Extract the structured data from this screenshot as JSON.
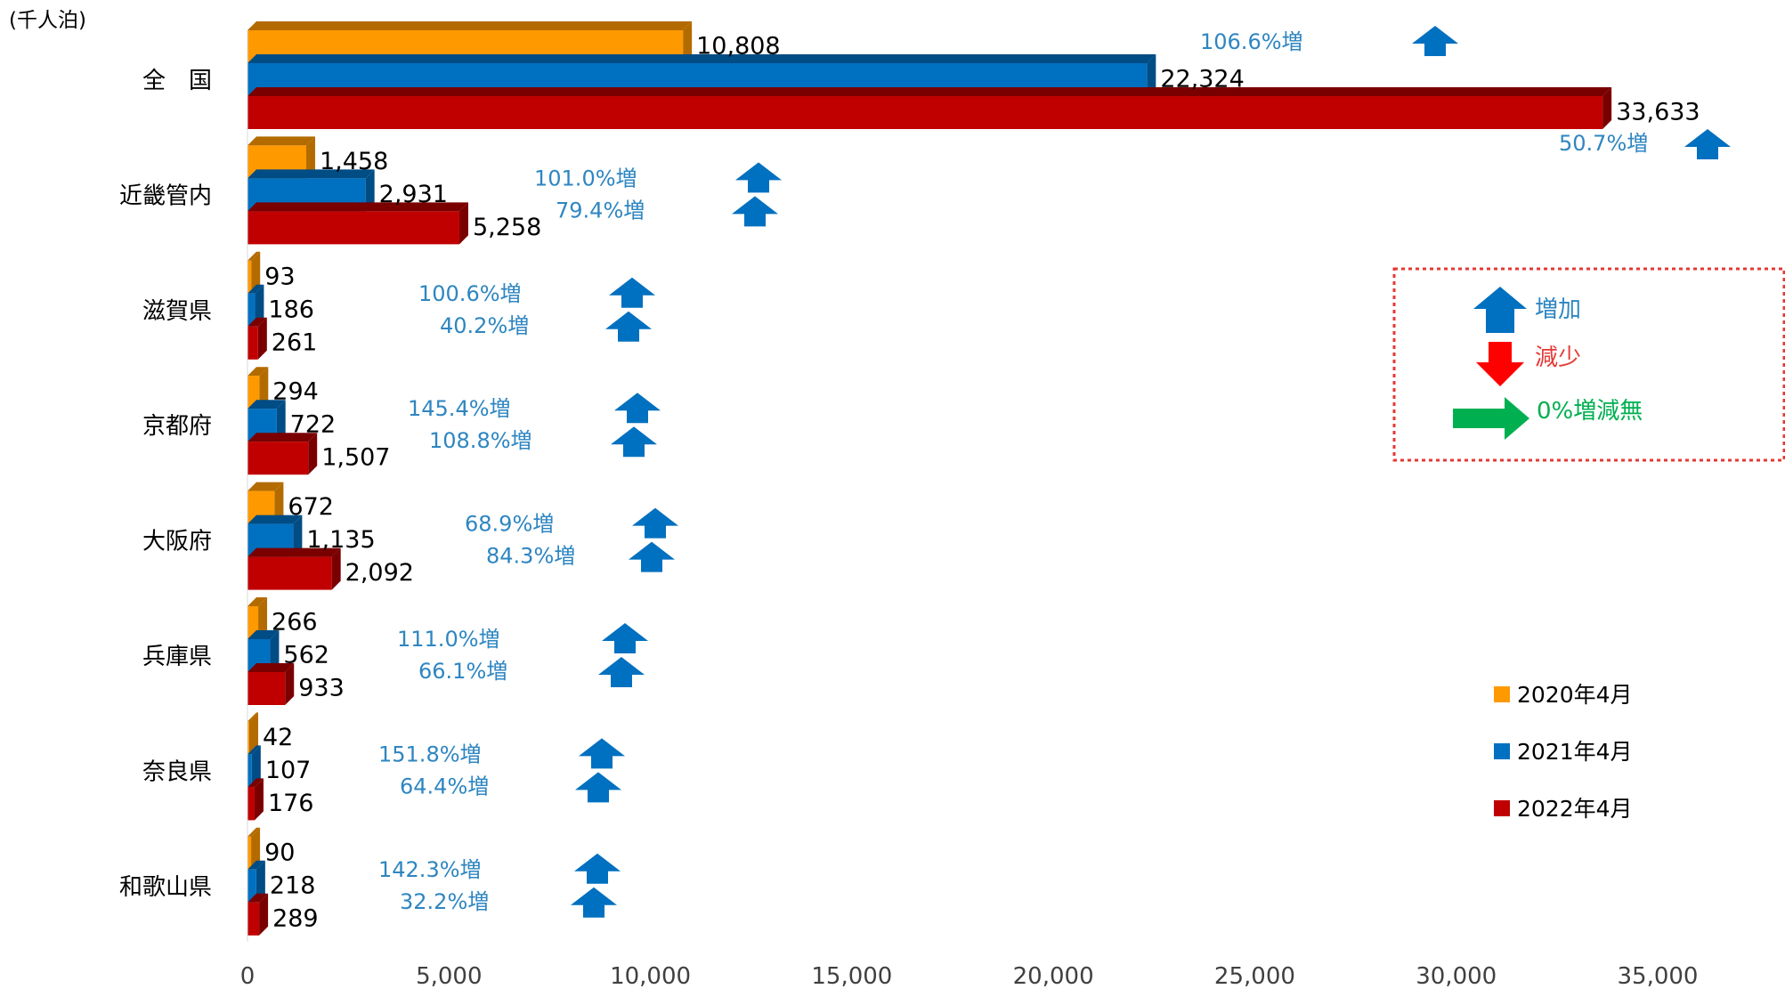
{
  "chart_data": {
    "type": "bar",
    "orientation": "horizontal",
    "unit_label": "(千人泊)",
    "categories": [
      "全　国",
      "近畿管内",
      "滋賀県",
      "京都府",
      "大阪府",
      "兵庫県",
      "奈良県",
      "和歌山県"
    ],
    "series": [
      {
        "name": "2020年4月",
        "color": "#FF9900",
        "values": [
          10808,
          1458,
          93,
          294,
          672,
          266,
          42,
          90
        ],
        "labels": [
          "10,808",
          "1,458",
          "93",
          "294",
          "672",
          "266",
          "42",
          "90"
        ]
      },
      {
        "name": "2021年4月",
        "color": "#0070C0",
        "values": [
          22324,
          2931,
          186,
          722,
          1135,
          562,
          107,
          218
        ],
        "labels": [
          "22,324",
          "2,931",
          "186",
          "722",
          "1,135",
          "562",
          "107",
          "218"
        ]
      },
      {
        "name": "2022年4月",
        "color": "#C00000",
        "values": [
          33633,
          5258,
          261,
          1507,
          2092,
          933,
          176,
          289
        ],
        "labels": [
          "33,633",
          "5,258",
          "261",
          "1,507",
          "2,092",
          "933",
          "176",
          "289"
        ]
      }
    ],
    "changes": [
      {
        "category": "全　国",
        "y2021": "106.6%増",
        "y2022": "50.7%増"
      },
      {
        "category": "近畿管内",
        "y2021": "101.0%増",
        "y2022": "79.4%増"
      },
      {
        "category": "滋賀県",
        "y2021": "100.6%増",
        "y2022": "40.2%増"
      },
      {
        "category": "京都府",
        "y2021": "145.4%増",
        "y2022": "108.8%増"
      },
      {
        "category": "大阪府",
        "y2021": "68.9%増",
        "y2022": "84.3%増"
      },
      {
        "category": "兵庫県",
        "y2021": "111.0%増",
        "y2022": "66.1%増"
      },
      {
        "category": "奈良県",
        "y2021": "151.8%増",
        "y2022": "64.4%増"
      },
      {
        "category": "和歌山県",
        "y2021": "142.3%増",
        "y2022": "32.2%増"
      }
    ],
    "xlim": [
      0,
      35000
    ],
    "xticks": [
      0,
      5000,
      10000,
      15000,
      20000,
      25000,
      30000,
      35000
    ],
    "xtick_labels": [
      "0",
      "5,000",
      "10,000",
      "15,000",
      "20,000",
      "25,000",
      "30,000",
      "35,000"
    ],
    "grid": false,
    "legend_position": "bottom-right"
  },
  "arrow_key": {
    "increase": "増加",
    "decrease": "減少",
    "no_change": "0%増減無",
    "colors": {
      "increase": "#0070C0",
      "decrease": "#FF0000",
      "no_change": "#00B050"
    }
  }
}
